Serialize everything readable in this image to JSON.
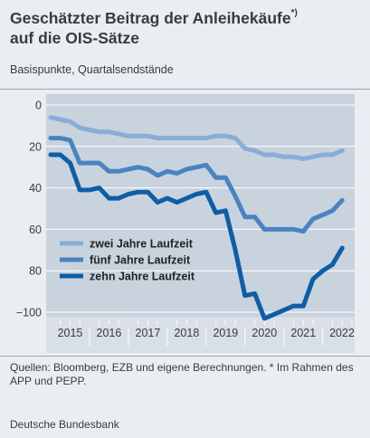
{
  "title": {
    "line1": "Geschätzter Beitrag der Anleihekäufe",
    "marker": "*)",
    "line2": "auf die OIS-Sätze"
  },
  "subtitle": "Basispunkte, Quartalsendstände",
  "footer": {
    "sources": "Quellen: Bloomberg, EZB und eigene Berechnungen. * Im Rahmen des APP und PEPP.",
    "publisher": "Deutsche Bundesbank"
  },
  "chart_data": {
    "type": "line",
    "y_axis": {
      "ticks": [
        0,
        20,
        40,
        60,
        80,
        100
      ],
      "tick_labels": [
        "0",
        "20",
        "40",
        "60",
        "80",
        "−100"
      ],
      "range": [
        0,
        113
      ],
      "inverted": true
    },
    "x_axis": {
      "labels": [
        "2015",
        "2016",
        "2017",
        "2018",
        "2019",
        "2020",
        "2021",
        "2022"
      ],
      "range": [
        2015.0,
        2022.75
      ]
    },
    "legend_position": "middle-left",
    "grid": "horizontal",
    "series": [
      {
        "name": "zwei Jahre Laufzeit",
        "color": "#86aed8",
        "points": [
          [
            2015.0,
            6
          ],
          [
            2015.25,
            7
          ],
          [
            2015.5,
            8
          ],
          [
            2015.75,
            11
          ],
          [
            2016.0,
            12
          ],
          [
            2016.25,
            13
          ],
          [
            2016.5,
            13
          ],
          [
            2016.75,
            14
          ],
          [
            2017.0,
            15
          ],
          [
            2017.25,
            15
          ],
          [
            2017.5,
            15
          ],
          [
            2017.75,
            16
          ],
          [
            2018.0,
            16
          ],
          [
            2018.25,
            16
          ],
          [
            2018.5,
            16
          ],
          [
            2018.75,
            16
          ],
          [
            2019.0,
            16
          ],
          [
            2019.25,
            15
          ],
          [
            2019.5,
            15
          ],
          [
            2019.75,
            16
          ],
          [
            2020.0,
            21
          ],
          [
            2020.25,
            22
          ],
          [
            2020.5,
            24
          ],
          [
            2020.75,
            24
          ],
          [
            2021.0,
            25
          ],
          [
            2021.25,
            25
          ],
          [
            2021.5,
            26
          ],
          [
            2021.75,
            25
          ],
          [
            2022.0,
            24
          ],
          [
            2022.25,
            24
          ],
          [
            2022.5,
            22
          ]
        ]
      },
      {
        "name": "fünf Jahre Laufzeit",
        "color": "#4a84c0",
        "points": [
          [
            2015.0,
            16
          ],
          [
            2015.25,
            16
          ],
          [
            2015.5,
            17
          ],
          [
            2015.75,
            28
          ],
          [
            2016.0,
            28
          ],
          [
            2016.25,
            28
          ],
          [
            2016.5,
            32
          ],
          [
            2016.75,
            32
          ],
          [
            2017.0,
            31
          ],
          [
            2017.25,
            30
          ],
          [
            2017.5,
            31
          ],
          [
            2017.75,
            34
          ],
          [
            2018.0,
            32
          ],
          [
            2018.25,
            33
          ],
          [
            2018.5,
            31
          ],
          [
            2018.75,
            30
          ],
          [
            2019.0,
            29
          ],
          [
            2019.25,
            35
          ],
          [
            2019.5,
            35
          ],
          [
            2019.75,
            44
          ],
          [
            2020.0,
            54
          ],
          [
            2020.25,
            54
          ],
          [
            2020.5,
            60
          ],
          [
            2020.75,
            60
          ],
          [
            2021.0,
            60
          ],
          [
            2021.25,
            60
          ],
          [
            2021.5,
            61
          ],
          [
            2021.75,
            55
          ],
          [
            2022.0,
            53
          ],
          [
            2022.25,
            51
          ],
          [
            2022.5,
            46
          ]
        ]
      },
      {
        "name": "zehn Jahre Laufzeit",
        "color": "#0d5ea6",
        "points": [
          [
            2015.0,
            24
          ],
          [
            2015.25,
            24
          ],
          [
            2015.5,
            28
          ],
          [
            2015.75,
            41
          ],
          [
            2016.0,
            41
          ],
          [
            2016.25,
            40
          ],
          [
            2016.5,
            45
          ],
          [
            2016.75,
            45
          ],
          [
            2017.0,
            43
          ],
          [
            2017.25,
            42
          ],
          [
            2017.5,
            42
          ],
          [
            2017.75,
            47
          ],
          [
            2018.0,
            45
          ],
          [
            2018.25,
            47
          ],
          [
            2018.5,
            45
          ],
          [
            2018.75,
            43
          ],
          [
            2019.0,
            42
          ],
          [
            2019.25,
            52
          ],
          [
            2019.5,
            51
          ],
          [
            2019.75,
            70
          ],
          [
            2020.0,
            92
          ],
          [
            2020.25,
            91
          ],
          [
            2020.5,
            103
          ],
          [
            2020.75,
            101
          ],
          [
            2021.0,
            99
          ],
          [
            2021.25,
            97
          ],
          [
            2021.5,
            97
          ],
          [
            2021.75,
            84
          ],
          [
            2022.0,
            80
          ],
          [
            2022.25,
            77
          ],
          [
            2022.5,
            69
          ]
        ]
      }
    ]
  }
}
